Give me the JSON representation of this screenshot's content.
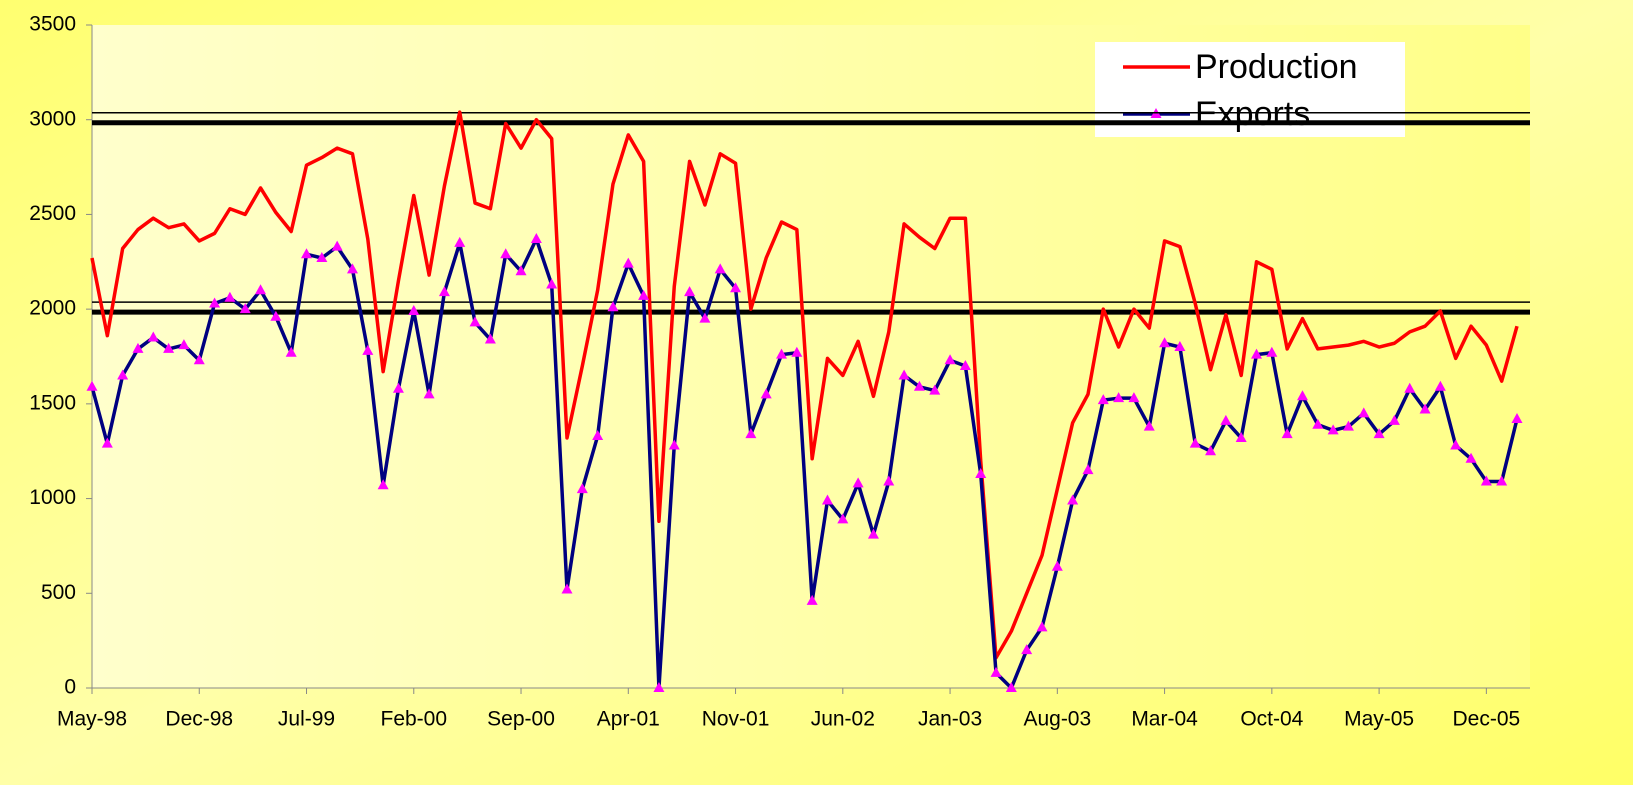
{
  "chart_data": {
    "type": "line",
    "categories": [
      "May-98",
      null,
      null,
      null,
      null,
      null,
      null,
      "Dec-98",
      null,
      null,
      null,
      null,
      null,
      null,
      "Jul-99",
      null,
      null,
      null,
      null,
      null,
      null,
      "Feb-00",
      null,
      null,
      null,
      null,
      null,
      null,
      "Sep-00",
      null,
      null,
      null,
      null,
      null,
      null,
      "Apr-01",
      null,
      null,
      null,
      null,
      null,
      null,
      "Nov-01",
      null,
      null,
      null,
      null,
      null,
      null,
      "Jun-02",
      null,
      null,
      null,
      null,
      null,
      null,
      "Jan-03",
      null,
      null,
      null,
      null,
      null,
      null,
      "Aug-03",
      null,
      null,
      null,
      null,
      null,
      null,
      "Mar-04",
      null,
      null,
      null,
      null,
      null,
      null,
      "Oct-04",
      null,
      null,
      null,
      null,
      null,
      null,
      "May-05",
      null,
      null,
      null,
      null,
      null,
      null,
      "Dec-05",
      null,
      null
    ],
    "series": [
      {
        "name": "Production",
        "color": "#ff0000",
        "values": [
          2270,
          1860,
          2320,
          2420,
          2480,
          2430,
          2450,
          2360,
          2400,
          2530,
          2500,
          2640,
          2510,
          2410,
          2760,
          2800,
          2850,
          2820,
          2370,
          1670,
          2150,
          2600,
          2180,
          2650,
          3040,
          2560,
          2530,
          2980,
          2850,
          3000,
          2900,
          1320,
          1700,
          2100,
          2660,
          2920,
          2780,
          880,
          2120,
          2780,
          2550,
          2820,
          2770,
          2000,
          2270,
          2460,
          2420,
          1210,
          1740,
          1650,
          1830,
          1540,
          1880,
          2450,
          2380,
          2320,
          2480,
          2480,
          1200,
          160,
          300,
          500,
          700,
          1050,
          1400,
          1550,
          2000,
          1800,
          2000,
          1900,
          2360,
          2330,
          2030,
          1680,
          1970,
          1650,
          2250,
          2210,
          1790,
          1950,
          1790,
          1800,
          1810,
          1830,
          1800,
          1820,
          1880,
          1910,
          1990,
          1740,
          1910,
          1810,
          1620,
          1910
        ]
      },
      {
        "name": "Exports",
        "color": "#000080",
        "marker_color": "#ff00ff",
        "values": [
          1590,
          1290,
          1650,
          1790,
          1850,
          1790,
          1810,
          1730,
          2030,
          2060,
          2000,
          2100,
          1960,
          1770,
          2290,
          2270,
          2330,
          2210,
          1780,
          1070,
          1580,
          1990,
          1550,
          2090,
          2350,
          1930,
          1840,
          2290,
          2200,
          2370,
          2130,
          520,
          1050,
          1330,
          2010,
          2240,
          2070,
          0,
          1280,
          2090,
          1950,
          2210,
          2110,
          1340,
          1550,
          1760,
          1770,
          460,
          990,
          890,
          1080,
          810,
          1090,
          1650,
          1590,
          1570,
          1730,
          1700,
          1130,
          80,
          0,
          200,
          320,
          640,
          990,
          1150,
          1520,
          1530,
          1530,
          1380,
          1820,
          1800,
          1290,
          1250,
          1410,
          1320,
          1760,
          1770,
          1340,
          1540,
          1390,
          1360,
          1380,
          1450,
          1340,
          1410,
          1580,
          1470,
          1590,
          1280,
          1210,
          1090,
          1090,
          1420
        ]
      }
    ],
    "ylim": [
      0,
      3500
    ],
    "yticks": [
      0,
      500,
      1000,
      1500,
      2000,
      2500,
      3000,
      3500
    ],
    "reference_lines": [
      3000,
      2000
    ],
    "grid": false,
    "legend": "top-right"
  }
}
